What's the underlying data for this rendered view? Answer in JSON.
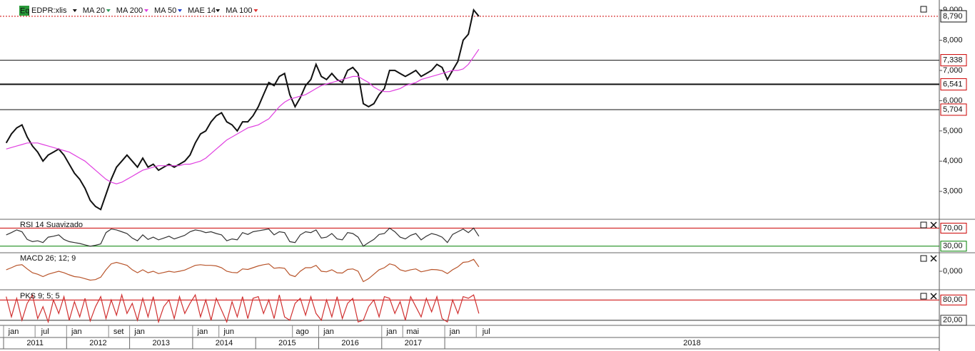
{
  "chart_data": [
    {
      "type": "line",
      "badge": "Eq",
      "symbol": "EDPR:xlis",
      "legend": [
        {
          "name": "MA 20",
          "color": "#2e9a5a"
        },
        {
          "name": "MA 200",
          "color": "#e040e0"
        },
        {
          "name": "MA 50",
          "color": "#2040d0"
        },
        {
          "name": "MAE 14",
          "color": "#111111"
        },
        {
          "name": "MA 100",
          "color": "#e03030"
        }
      ],
      "x": [
        "2011-01",
        "2011-02",
        "2011-03",
        "2011-04",
        "2011-05",
        "2011-06",
        "2011-07",
        "2011-08",
        "2011-09",
        "2011-10",
        "2011-11",
        "2011-12",
        "2012-01",
        "2012-02",
        "2012-03",
        "2012-04",
        "2012-05",
        "2012-06",
        "2012-07",
        "2012-08",
        "2012-09",
        "2012-10",
        "2012-11",
        "2012-12",
        "2013-01",
        "2013-02",
        "2013-03",
        "2013-04",
        "2013-05",
        "2013-06",
        "2013-07",
        "2013-08",
        "2013-09",
        "2013-10",
        "2013-11",
        "2013-12",
        "2014-01",
        "2014-02",
        "2014-03",
        "2014-04",
        "2014-05",
        "2014-06",
        "2014-07",
        "2014-08",
        "2014-09",
        "2014-10",
        "2014-11",
        "2014-12",
        "2015-01",
        "2015-02",
        "2015-03",
        "2015-04",
        "2015-05",
        "2015-06",
        "2015-07",
        "2015-08",
        "2015-09",
        "2015-10",
        "2015-11",
        "2015-12",
        "2016-01",
        "2016-02",
        "2016-03",
        "2016-04",
        "2016-05",
        "2016-06",
        "2016-07",
        "2016-08",
        "2016-09",
        "2016-10",
        "2016-11",
        "2016-12",
        "2017-01",
        "2017-02",
        "2017-03",
        "2017-04",
        "2017-05",
        "2017-06",
        "2017-07",
        "2017-08",
        "2017-09",
        "2017-10",
        "2017-11",
        "2017-12",
        "2018-01",
        "2018-02",
        "2018-03",
        "2018-04",
        "2018-05",
        "2018-06",
        "2018-07"
      ],
      "series": [
        {
          "name": "EDPR:xlis",
          "color": "#111111",
          "values": [
            4.6,
            4.9,
            5.1,
            5.2,
            4.8,
            4.5,
            4.3,
            4.0,
            4.2,
            4.3,
            4.4,
            4.2,
            3.9,
            3.6,
            3.4,
            3.1,
            2.7,
            2.5,
            2.4,
            2.9,
            3.4,
            3.8,
            4.0,
            4.2,
            4.0,
            3.8,
            4.1,
            3.8,
            3.9,
            3.7,
            3.8,
            3.9,
            3.8,
            3.9,
            4.0,
            4.2,
            4.6,
            4.9,
            5.0,
            5.3,
            5.5,
            5.6,
            5.3,
            5.2,
            5.0,
            5.3,
            5.3,
            5.5,
            5.8,
            6.2,
            6.6,
            6.5,
            6.8,
            6.9,
            6.2,
            5.8,
            6.1,
            6.5,
            6.7,
            7.2,
            6.8,
            6.7,
            6.9,
            6.7,
            6.6,
            7.0,
            7.1,
            6.9,
            5.9,
            5.8,
            5.9,
            6.2,
            6.4,
            7.0,
            7.0,
            6.9,
            6.8,
            6.9,
            7.0,
            6.8,
            6.9,
            7.0,
            7.2,
            7.1,
            6.7,
            7.0,
            7.3,
            8.0,
            8.2,
            9.0,
            8.79
          ]
        },
        {
          "name": "MA 200",
          "color": "#e040e0",
          "values": [
            4.4,
            4.45,
            4.5,
            4.55,
            4.6,
            4.6,
            4.6,
            4.55,
            4.5,
            4.45,
            4.4,
            4.35,
            4.3,
            4.2,
            4.1,
            4.0,
            3.85,
            3.7,
            3.55,
            3.4,
            3.3,
            3.25,
            3.3,
            3.4,
            3.5,
            3.6,
            3.7,
            3.75,
            3.8,
            3.85,
            3.85,
            3.85,
            3.85,
            3.85,
            3.9,
            3.9,
            3.95,
            4.0,
            4.1,
            4.25,
            4.4,
            4.55,
            4.7,
            4.8,
            4.9,
            5.0,
            5.1,
            5.15,
            5.2,
            5.3,
            5.4,
            5.6,
            5.8,
            5.95,
            6.05,
            6.1,
            6.15,
            6.2,
            6.3,
            6.4,
            6.5,
            6.55,
            6.6,
            6.65,
            6.7,
            6.75,
            6.8,
            6.8,
            6.7,
            6.6,
            6.45,
            6.35,
            6.3,
            6.3,
            6.35,
            6.4,
            6.5,
            6.55,
            6.6,
            6.7,
            6.75,
            6.8,
            6.85,
            6.9,
            6.95,
            7.0,
            7.0,
            7.05,
            7.2,
            7.45,
            7.7
          ]
        }
      ],
      "ylim": [
        2.1,
        9.33
      ],
      "yticks": [
        {
          "value": 3,
          "label": "3,000"
        },
        {
          "value": 4,
          "label": "4,000"
        },
        {
          "value": 5,
          "label": "5,000"
        },
        {
          "value": 6,
          "label": "6,000"
        },
        {
          "value": 7,
          "label": "7,000"
        },
        {
          "value": 8,
          "label": "8,000"
        },
        {
          "value": 9,
          "label": "9,000"
        }
      ],
      "levels": [
        {
          "value": 8.79,
          "label": "8,790",
          "color": "#cc0000",
          "dotted": true
        },
        {
          "value": 7.338,
          "label": "7,338",
          "color": "#111111"
        },
        {
          "value": 6.541,
          "label": "6,541",
          "color": "#111111",
          "bold": true
        },
        {
          "value": 5.704,
          "label": "5,704",
          "color": "#111111"
        }
      ],
      "xticks": [
        {
          "value": "2011-01",
          "label": "jan"
        },
        {
          "value": "2011-07",
          "label": "jul"
        },
        {
          "value": "2012-01",
          "label": "jan"
        },
        {
          "value": "2012-09",
          "label": "set"
        },
        {
          "value": "2013-01",
          "label": "jan"
        },
        {
          "value": "2014-01",
          "label": "jan"
        },
        {
          "value": "2014-06",
          "label": "jun"
        },
        {
          "value": "2015-08",
          "label": "ago"
        },
        {
          "value": "2016-01",
          "label": "jan"
        },
        {
          "value": "2017-01",
          "label": "jan"
        },
        {
          "value": "2017-05",
          "label": "mai"
        },
        {
          "value": "2018-01",
          "label": "jan"
        },
        {
          "value": "2018-07",
          "label": "jul"
        }
      ],
      "years": [
        "2011",
        "2012",
        "2013",
        "2014",
        "2015",
        "2016",
        "2017",
        "2018"
      ]
    },
    {
      "type": "line",
      "title": "RSI 14 Suavizado",
      "series": [
        {
          "name": "RSI 14 Suavizado",
          "color": "#333333",
          "values": [
            55,
            60,
            66,
            62,
            45,
            40,
            42,
            38,
            50,
            52,
            55,
            45,
            40,
            38,
            36,
            33,
            30,
            32,
            35,
            60,
            68,
            66,
            62,
            58,
            48,
            42,
            55,
            45,
            50,
            44,
            48,
            52,
            46,
            50,
            54,
            62,
            66,
            64,
            60,
            62,
            58,
            55,
            42,
            46,
            44,
            60,
            56,
            62,
            64,
            66,
            68,
            55,
            62,
            60,
            40,
            38,
            55,
            62,
            60,
            66,
            48,
            50,
            58,
            46,
            44,
            60,
            58,
            50,
            30,
            38,
            45,
            56,
            58,
            70,
            62,
            50,
            46,
            54,
            58,
            44,
            52,
            58,
            55,
            50,
            38,
            56,
            62,
            68,
            60,
            70,
            52
          ]
        }
      ],
      "ylim": [
        17,
        88
      ],
      "yticks": [
        {
          "value": 70,
          "label": "70,00",
          "color": "#cc0000"
        },
        {
          "value": 30,
          "label": "30,00",
          "color": "#008000"
        }
      ]
    },
    {
      "type": "line",
      "title": "MACD 26; 12; 9",
      "series": [
        {
          "name": "MACD 26; 12; 9",
          "color": "#b8542a",
          "values": [
            0.05,
            0.12,
            0.2,
            0.22,
            0.08,
            -0.05,
            -0.1,
            -0.18,
            -0.1,
            -0.05,
            0.0,
            -0.05,
            -0.12,
            -0.18,
            -0.2,
            -0.25,
            -0.3,
            -0.28,
            -0.2,
            0.05,
            0.25,
            0.3,
            0.25,
            0.2,
            0.05,
            -0.05,
            0.05,
            -0.05,
            0.0,
            -0.08,
            -0.04,
            0.0,
            -0.03,
            0.0,
            0.04,
            0.12,
            0.2,
            0.22,
            0.2,
            0.2,
            0.18,
            0.12,
            0.0,
            -0.04,
            -0.05,
            0.08,
            0.06,
            0.12,
            0.18,
            0.22,
            0.25,
            0.1,
            0.12,
            0.1,
            -0.12,
            -0.18,
            0.0,
            0.12,
            0.12,
            0.2,
            0.0,
            -0.02,
            0.05,
            -0.05,
            -0.06,
            0.06,
            0.08,
            0.0,
            -0.35,
            -0.25,
            -0.1,
            0.05,
            0.12,
            0.25,
            0.2,
            0.05,
            0.0,
            0.05,
            0.08,
            -0.02,
            0.02,
            0.06,
            0.05,
            0.02,
            -0.08,
            0.05,
            0.15,
            0.3,
            0.32,
            0.4,
            0.15
          ]
        }
      ],
      "ylim": [
        -0.6,
        0.6
      ],
      "yticks": [
        {
          "value": 0,
          "label": "0,000"
        }
      ]
    },
    {
      "type": "line",
      "title": "PKS 9; 5; 5",
      "series": [
        {
          "name": "PKS 9; 5; 5",
          "color": "#d03030",
          "values": [
            90,
            30,
            85,
            20,
            70,
            95,
            25,
            60,
            15,
            80,
            40,
            90,
            20,
            75,
            30,
            85,
            18,
            60,
            90,
            25,
            80,
            35,
            95,
            40,
            70,
            20,
            85,
            30,
            90,
            15,
            60,
            80,
            25,
            90,
            40,
            70,
            95,
            30,
            80,
            20,
            85,
            50,
            15,
            75,
            30,
            90,
            25,
            85,
            90,
            40,
            80,
            25,
            95,
            30,
            20,
            70,
            85,
            35,
            90,
            40,
            20,
            80,
            30,
            90,
            25,
            70,
            85,
            15,
            20,
            60,
            80,
            30,
            90,
            85,
            40,
            75,
            20,
            90,
            60,
            30,
            85,
            45,
            90,
            25,
            15,
            80,
            40,
            90,
            85,
            95,
            40
          ]
        }
      ],
      "ylim": [
        7,
        106
      ],
      "yticks": [
        {
          "value": 80,
          "label": "80,00",
          "color": "#cc0000"
        },
        {
          "value": 20,
          "label": "20,00",
          "color": "#333333"
        }
      ]
    }
  ]
}
